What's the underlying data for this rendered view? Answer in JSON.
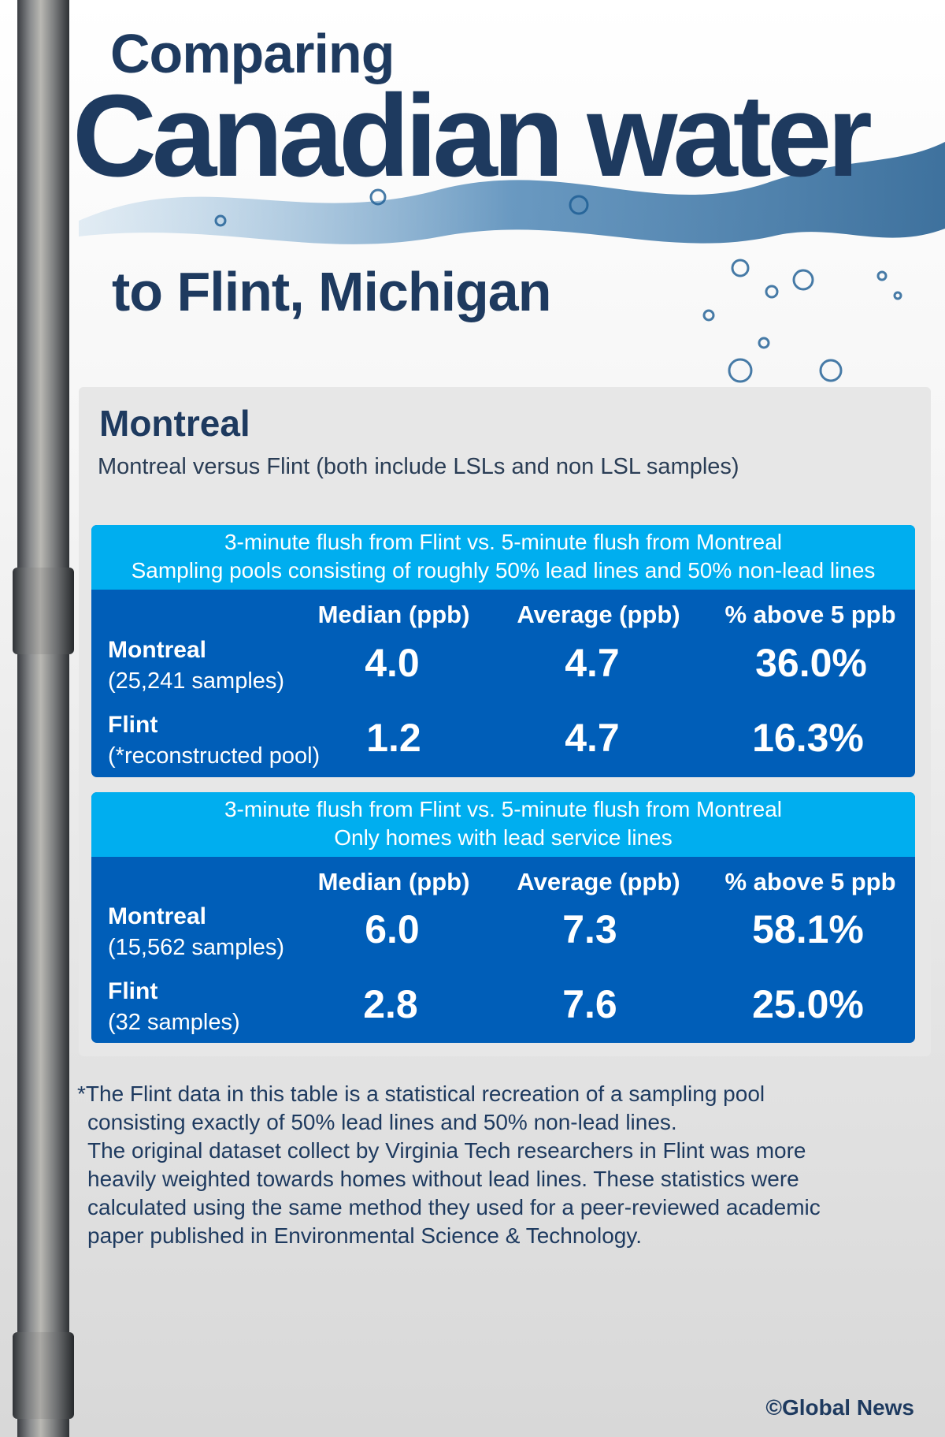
{
  "title": {
    "line1": "Comparing",
    "line2": "Canadian water",
    "line3": "to Flint, Michigan"
  },
  "section": {
    "heading": "Montreal",
    "subtitle": "Montreal versus Flint (both include LSLs and non LSL samples)"
  },
  "tables": [
    {
      "header": [
        "3-minute flush from Flint vs. 5-minute flush from Montreal",
        "Sampling pools consisting of roughly 50% lead lines and 50% non-lead lines"
      ],
      "columns": [
        "Median (ppb)",
        "Average (ppb)",
        "% above 5 ppb"
      ],
      "rows": [
        {
          "label": "Montreal",
          "sublabel": "(25,241 samples)",
          "values": [
            "4.0",
            "4.7",
            "36.0%"
          ]
        },
        {
          "label": "Flint",
          "sublabel": "(*reconstructed pool)",
          "values": [
            "1.2",
            "4.7",
            "16.3%"
          ]
        }
      ]
    },
    {
      "header": [
        "3-minute flush from Flint vs. 5-minute flush from Montreal",
        "Only homes with lead service lines"
      ],
      "columns": [
        "Median (ppb)",
        "Average (ppb)",
        "% above 5 ppb"
      ],
      "rows": [
        {
          "label": "Montreal",
          "sublabel": "(15,562 samples)",
          "values": [
            "6.0",
            "7.3",
            "58.1%"
          ]
        },
        {
          "label": "Flint",
          "sublabel": "(32 samples)",
          "values": [
            "2.8",
            "7.6",
            "25.0%"
          ]
        }
      ]
    }
  ],
  "footnote": [
    "*The Flint data in this table is a statistical recreation of a sampling pool",
    "consisting exactly of 50% lead lines and 50% non-lead lines.",
    "The original dataset collect by Virginia Tech researchers in Flint was more",
    "heavily weighted towards homes without lead lines. These statistics were",
    "calculated using the same method they used for a peer-reviewed academic",
    "paper published in Environmental Science & Technology."
  ],
  "credit": "©Global News",
  "colors": {
    "title": "#1e3a5f",
    "table_header": "#00aeef",
    "table_body": "#005eb8",
    "panel": "#e7e7e7"
  }
}
